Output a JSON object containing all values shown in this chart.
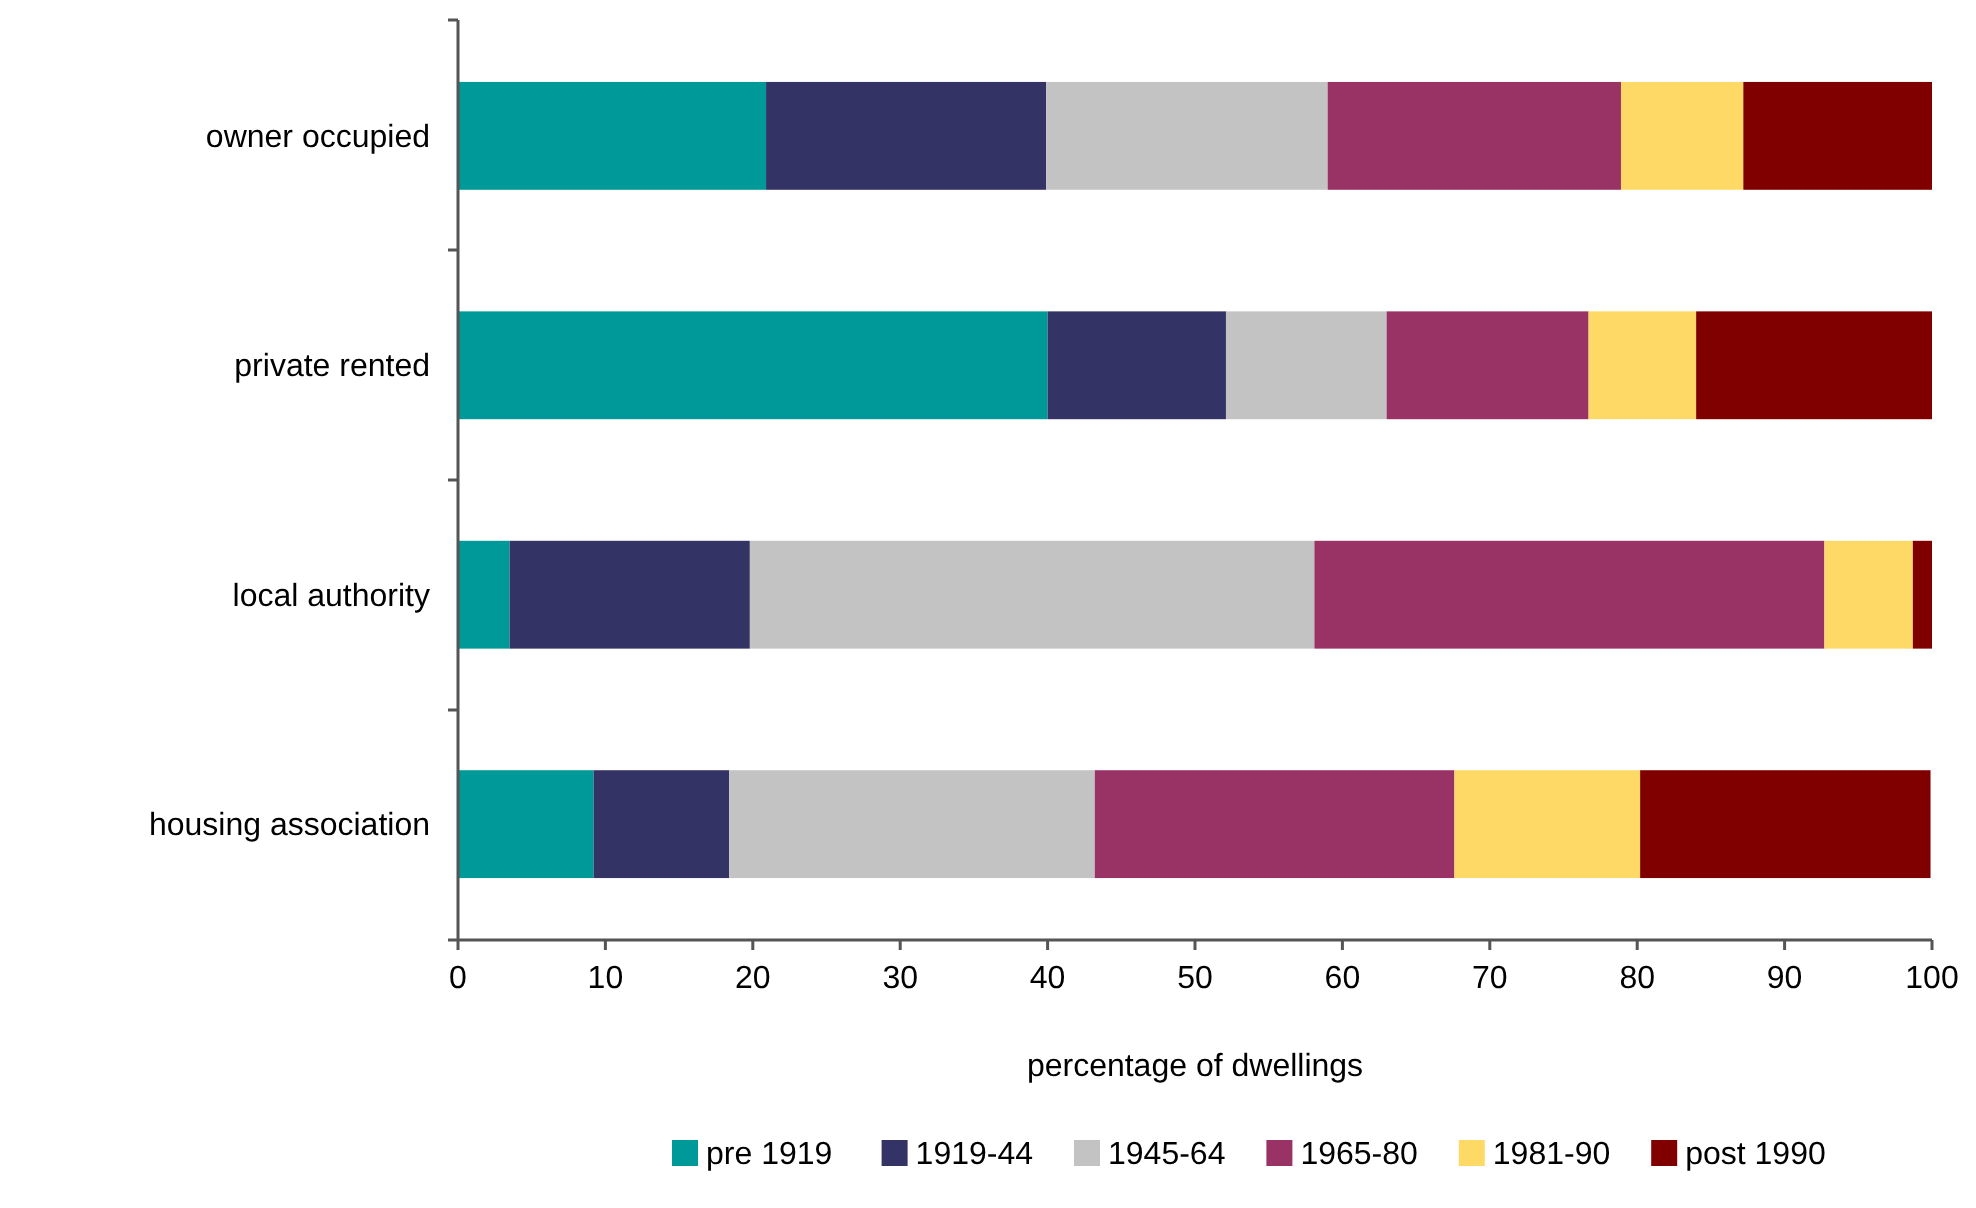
{
  "chart_data": {
    "type": "bar",
    "orientation": "horizontal",
    "stacked": true,
    "xlabel": "percentage of dwellings",
    "categories": [
      "owner occupied",
      "private rented",
      "local authority",
      "housing association"
    ],
    "series": [
      {
        "name": "pre 1919",
        "color": "#009999",
        "values": [
          20.9,
          40.0,
          3.5,
          9.2
        ]
      },
      {
        "name": "1919-44",
        "color": "#333366",
        "values": [
          19.0,
          12.1,
          16.3,
          9.2
        ]
      },
      {
        "name": "1945-64",
        "color": "#c3c3c3",
        "values": [
          19.1,
          10.9,
          38.3,
          24.8
        ]
      },
      {
        "name": "1965-80",
        "color": "#993366",
        "values": [
          19.9,
          13.7,
          34.6,
          24.4
        ]
      },
      {
        "name": "1981-90",
        "color": "#ffd966",
        "values": [
          8.3,
          7.3,
          6.0,
          12.6
        ]
      },
      {
        "name": "post 1990",
        "color": "#800000",
        "values": [
          12.8,
          16.0,
          1.3,
          19.7
        ]
      }
    ],
    "xlim": [
      0,
      100
    ],
    "xticks": [
      0,
      10,
      20,
      30,
      40,
      50,
      60,
      70,
      80,
      90,
      100
    ],
    "grid": false,
    "legend": "bottom"
  }
}
